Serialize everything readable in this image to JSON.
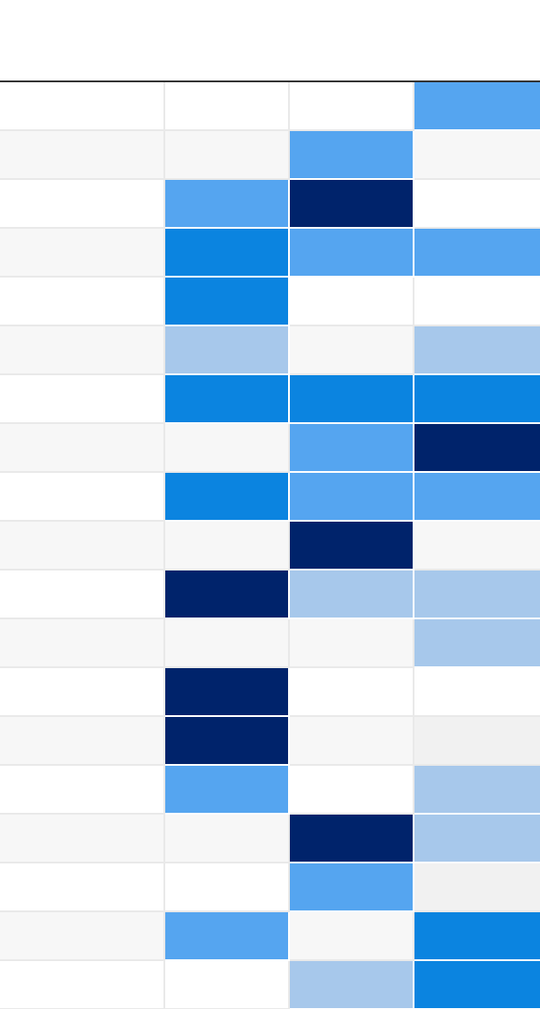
{
  "colors": {
    "row_even": "#ffffff",
    "row_odd": "#f7f7f7",
    "grey": "#f1f1f1",
    "light_blue": "#a7c8eb",
    "medium_blue": "#55a5f0",
    "bright_blue": "#0b84e0",
    "navy": "#00236b"
  },
  "grid": {
    "rows": [
      [
        "",
        "",
        "medium_blue"
      ],
      [
        "",
        "medium_blue",
        ""
      ],
      [
        "medium_blue",
        "navy",
        ""
      ],
      [
        "bright_blue",
        "medium_blue",
        "medium_blue"
      ],
      [
        "bright_blue",
        "",
        ""
      ],
      [
        "light_blue",
        "",
        "light_blue"
      ],
      [
        "bright_blue",
        "bright_blue",
        "bright_blue"
      ],
      [
        "",
        "medium_blue",
        "navy"
      ],
      [
        "bright_blue",
        "medium_blue",
        "medium_blue"
      ],
      [
        "",
        "navy",
        ""
      ],
      [
        "navy",
        "light_blue",
        "light_blue"
      ],
      [
        "",
        "",
        "light_blue"
      ],
      [
        "navy",
        "",
        ""
      ],
      [
        "navy",
        "",
        "grey"
      ],
      [
        "medium_blue",
        "",
        "light_blue"
      ],
      [
        "",
        "navy",
        "light_blue"
      ],
      [
        "",
        "medium_blue",
        "grey"
      ],
      [
        "medium_blue",
        "",
        "bright_blue"
      ],
      [
        "",
        "light_blue",
        "bright_blue"
      ]
    ]
  }
}
